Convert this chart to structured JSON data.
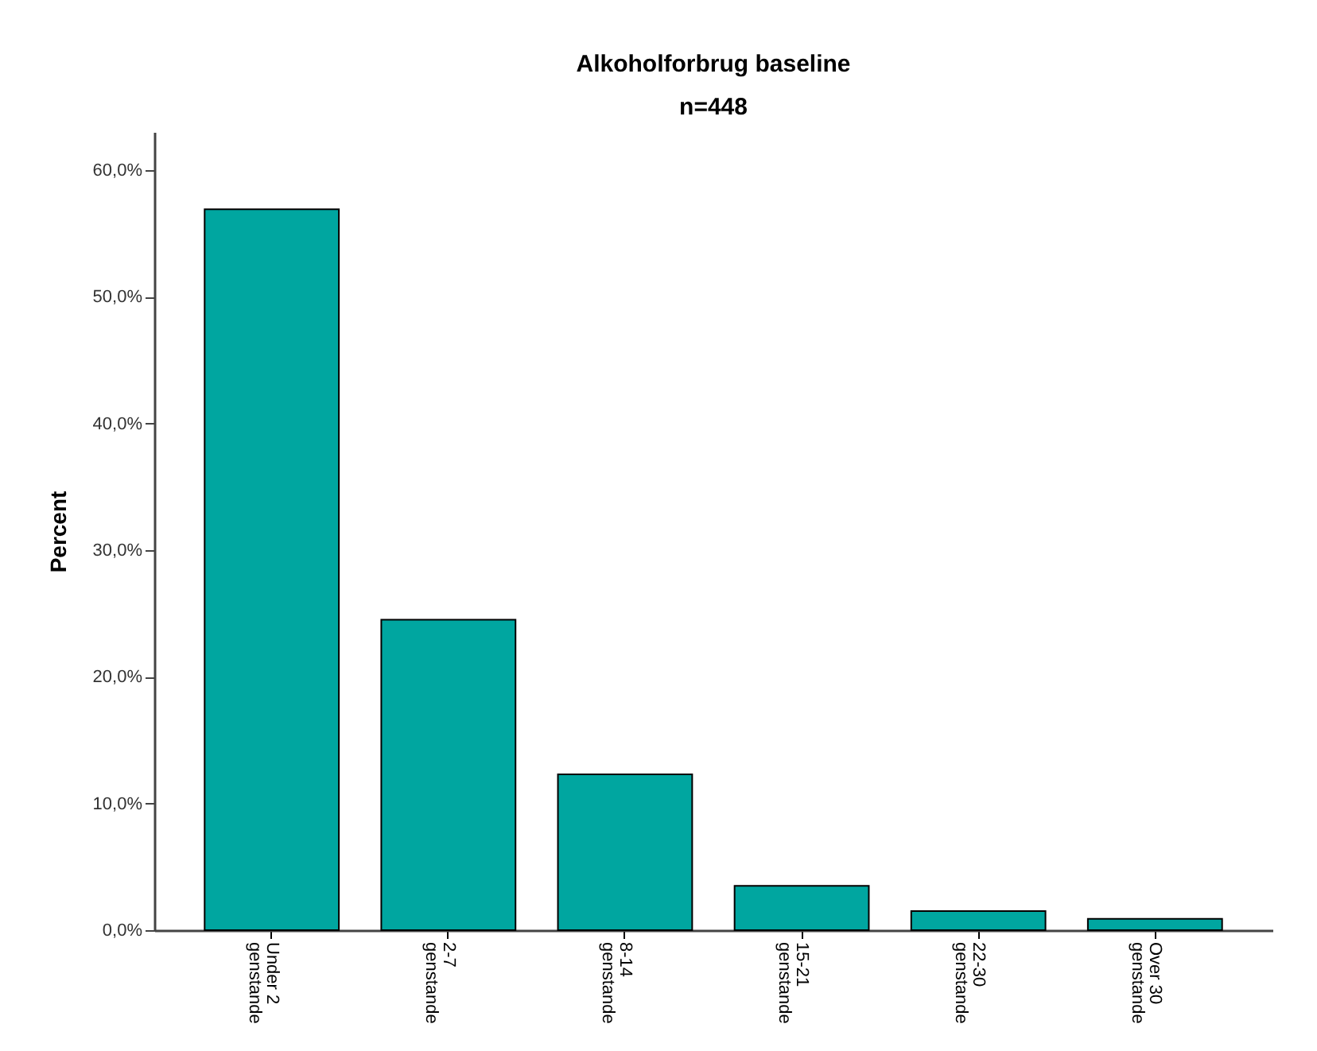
{
  "chart_data": {
    "type": "bar",
    "title": "Alkoholforbrug baseline",
    "subtitle": "n=448",
    "ylabel": "Percent",
    "categories": [
      "Under 2 genstande",
      "2-7 genstande",
      "8-14 genstande",
      "15-21 genstande",
      "22-30 genstande",
      "Over 30 genstande"
    ],
    "values": [
      56.9,
      24.5,
      12.3,
      3.5,
      1.5,
      0.9
    ],
    "color": "#00a6a0",
    "ylim": [
      0,
      63
    ],
    "yticks": [
      {
        "value": 0,
        "label": "0,0%"
      },
      {
        "value": 10,
        "label": "10,0%"
      },
      {
        "value": 20,
        "label": "20,0%"
      },
      {
        "value": 30,
        "label": "30,0%"
      },
      {
        "value": 40,
        "label": "40,0%"
      },
      {
        "value": 50,
        "label": "50,0%"
      },
      {
        "value": 60,
        "label": "60,0%"
      }
    ],
    "grid": false
  }
}
